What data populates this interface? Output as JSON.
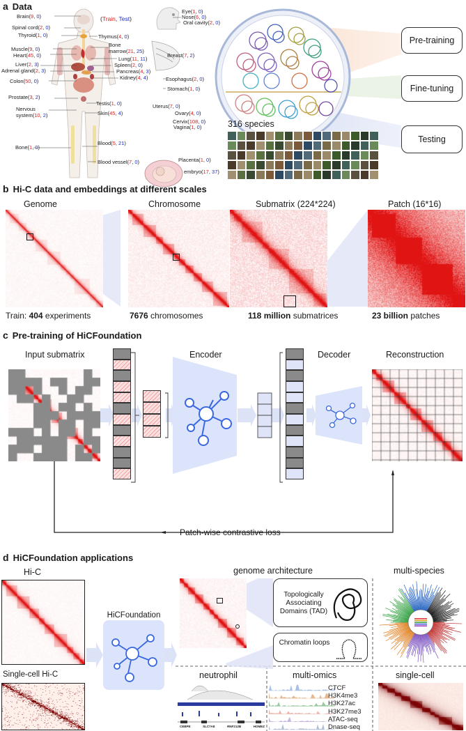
{
  "panel_a": {
    "letter": "a",
    "title": "Data",
    "legend": {
      "open": "(",
      "train": "Train",
      "comma": ", ",
      "test": "Test",
      "close": ")"
    },
    "organs": [
      {
        "name": "Brain",
        "train": "9",
        "test": "0"
      },
      {
        "name": "Spinal cord",
        "train": "2",
        "test": "0"
      },
      {
        "name": "Thyroid",
        "train": "1",
        "test": "0"
      },
      {
        "name": "Muscle",
        "train": "9",
        "test": "0"
      },
      {
        "name": "Heart",
        "train": "45",
        "test": "0"
      },
      {
        "name": "Liver",
        "train": "2",
        "test": "3"
      },
      {
        "name": "Adrenal gland",
        "train": "2",
        "test": "3"
      },
      {
        "name": "Colon",
        "train": "50",
        "test": "0"
      },
      {
        "name": "Prostate",
        "train": "3",
        "test": "2"
      },
      {
        "name": "Bone",
        "train": "1",
        "test": "0"
      },
      {
        "name": "Thymus",
        "train": "4",
        "test": "0"
      },
      {
        "name": "Bone marrow",
        "train": "21",
        "test": "25"
      },
      {
        "name": "Lung",
        "train": "11",
        "test": "11"
      },
      {
        "name": "Spleen",
        "train": "2",
        "test": "0"
      },
      {
        "name": "Pancreas",
        "train": "4",
        "test": "3"
      },
      {
        "name": "Kidney",
        "train": "4",
        "test": "4"
      },
      {
        "name": "Testis",
        "train": "1",
        "test": "0"
      },
      {
        "name": "Skin",
        "train": "45",
        "test": "4"
      },
      {
        "name": "Blood",
        "train": "5",
        "test": "21"
      },
      {
        "name": "Blood vessel",
        "train": "7",
        "test": "0"
      },
      {
        "name": "Eye",
        "train": "1",
        "test": "0"
      },
      {
        "name": "Nose",
        "train": "6",
        "test": "0"
      },
      {
        "name": "Oral cavity",
        "train": "2",
        "test": "0"
      },
      {
        "name": "Breast",
        "train": "7",
        "test": "2"
      },
      {
        "name": "Esophagus",
        "train": "2",
        "test": "0"
      },
      {
        "name": "Stomach",
        "train": "1",
        "test": "0"
      },
      {
        "name": "Uterus",
        "train": "7",
        "test": "0"
      },
      {
        "name": "Ovary",
        "train": "4",
        "test": "0"
      },
      {
        "name": "Cervix",
        "train": "108",
        "test": "0"
      },
      {
        "name": "Vagina",
        "train": "1",
        "test": "0"
      },
      {
        "name": "Placenta",
        "train": "1",
        "test": "0"
      },
      {
        "name": "embryo",
        "train": "17",
        "test": "37"
      }
    ],
    "nervous": {
      "line1": "Nervous",
      "line2": "system",
      "train": "10",
      "test": "2"
    },
    "species_label": "316 species",
    "stages": [
      "Pre-training",
      "Fine-tuning",
      "Testing"
    ]
  },
  "panel_b": {
    "letter": "b",
    "title": "Hi-C data and embeddings at different scales",
    "scales": [
      "Genome",
      "Chromosome",
      "Submatrix (224*224)",
      "Patch (16*16)"
    ],
    "counts": [
      {
        "prefix": "Train: ",
        "bold": "404",
        "suffix": " experiments"
      },
      {
        "prefix": "",
        "bold": "7676",
        "suffix": " chromosomes"
      },
      {
        "prefix": "",
        "bold": "118 million",
        "suffix": " submatrices"
      },
      {
        "prefix": "",
        "bold": "23 billion",
        "suffix": " patches"
      }
    ]
  },
  "panel_c": {
    "letter": "c",
    "title": "Pre-training of HiCFoundation",
    "labels": [
      "Input submatrix",
      "Encoder",
      "Decoder",
      "Reconstruction"
    ],
    "loss": "Patch-wise contrastive loss"
  },
  "panel_d": {
    "letter": "d",
    "title": "HiCFoundation applications",
    "hic": "Hi-C",
    "single_cell_hic": "Single-cell Hi-C",
    "model": "HiCFoundation",
    "genome_arch": "genome architecture",
    "tad": "Topologically Associating Domains (TAD)",
    "loops": "Chromatin loops",
    "multi_species": "multi-species",
    "neutrophil": "neutrophil",
    "multi_omics": "multi-omics",
    "single_cell": "single-cell",
    "tracks": [
      "CTCF",
      "H3K4me3",
      "H3K27ac",
      "H3K27me3",
      "ATAC-seq",
      "Dnase-seq"
    ],
    "genes": [
      "CEBPE",
      "SLC7A8",
      "RNF212B",
      "HOMEZ"
    ]
  },
  "colors": {
    "train": "#d62020",
    "test": "#2030c0",
    "hic_red": "#e02020",
    "encoder_blue": "#dbe4fb",
    "node_blue": "#3a68e0",
    "mask_gray": "#8a8a8a"
  }
}
